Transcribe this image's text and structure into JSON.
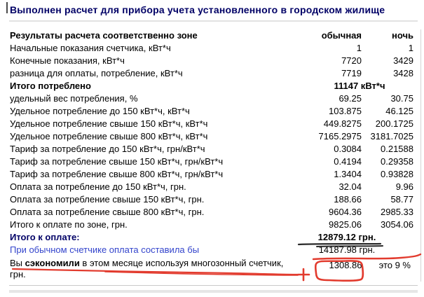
{
  "title": "Выполнен расчет для прибора учета установленного в городском жилище",
  "table": {
    "header": {
      "label": "Результаты расчета соответственно зоне",
      "col1": "обычная",
      "col2": "ночь"
    },
    "rows": [
      {
        "type": "normal",
        "label": "Начальные показания счетчика, кВт*ч",
        "v1": "1",
        "v2": "1"
      },
      {
        "type": "normal",
        "label": "Конечные показания, кВт*ч",
        "v1": "7720",
        "v2": "3429"
      },
      {
        "type": "normal",
        "label": "разница для оплаты, потребление, кВт*ч",
        "v1": "7719",
        "v2": "3428"
      },
      {
        "type": "span-bold",
        "label": "Итого потреблено",
        "value": "11147 кВт*ч"
      },
      {
        "type": "normal",
        "label": "удельный вес потребления, %",
        "v1": "69.25",
        "v2": "30.75"
      },
      {
        "type": "normal",
        "label": "Удельное потребление до 150 кВт*ч, кВт*ч",
        "v1": "103.875",
        "v2": "46.125"
      },
      {
        "type": "normal",
        "label": "Удельное потребление свыше 150 кВт*ч, кВт*ч",
        "v1": "449.8275",
        "v2": "200.1725"
      },
      {
        "type": "normal",
        "label": "Удельное потребление свыше 800 кВт*ч, кВт*ч",
        "v1": "7165.2975",
        "v2": "3181.7025"
      },
      {
        "type": "normal",
        "label": "Тариф за потребление до 150 кВт*ч, грн/кВт*ч",
        "v1": "0.3084",
        "v2": "0.21588"
      },
      {
        "type": "normal",
        "label": "Тариф за потребление свыше 150 кВт*ч, грн/кВт*ч",
        "v1": "0.4194",
        "v2": "0.29358"
      },
      {
        "type": "normal",
        "label": "Тариф за потребление свыше 800 кВт*ч, грн/кВт*ч",
        "v1": "1.3404",
        "v2": "0.93828"
      },
      {
        "type": "normal",
        "label": "Оплата за потребление до 150 кВт*ч, грн.",
        "v1": "32.04",
        "v2": "9.96"
      },
      {
        "type": "normal",
        "label": "Оплата за потребление свыше 150 кВт*ч, грн.",
        "v1": "188.66",
        "v2": "58.77"
      },
      {
        "type": "normal",
        "label": "Оплата за потребление свыше 800 кВт*ч, грн.",
        "v1": "9604.36",
        "v2": "2985.33"
      },
      {
        "type": "normal",
        "label": "Итого к оплате по зоне, грн.",
        "v1": "9825.06",
        "v2": "3054.06"
      },
      {
        "type": "grand",
        "label": "Итого к оплате:",
        "value": "12879.12 грн."
      },
      {
        "type": "ordinary",
        "label": "При обычном счетчике оплата составила бы",
        "value": "14187.98 грн."
      },
      {
        "type": "saved",
        "label_prefix": "Вы ",
        "label_bold": "сэкономили",
        "label_suffix": " в этом месяце используя многозонный счетчик, грн.",
        "value": "1308.86",
        "percent": "это 9 %"
      }
    ]
  },
  "colors": {
    "title_navy": "#000066",
    "link_blue": "#3344cc",
    "marker_red": "#e23b2e",
    "dark_underline": "#2a2a2a"
  },
  "annotations": {
    "circled_value": "1308.86",
    "red_underlined_value": "14187.98 грн.",
    "dark_underlined_value": "12879.12 грн.",
    "plus_mark": "+"
  }
}
